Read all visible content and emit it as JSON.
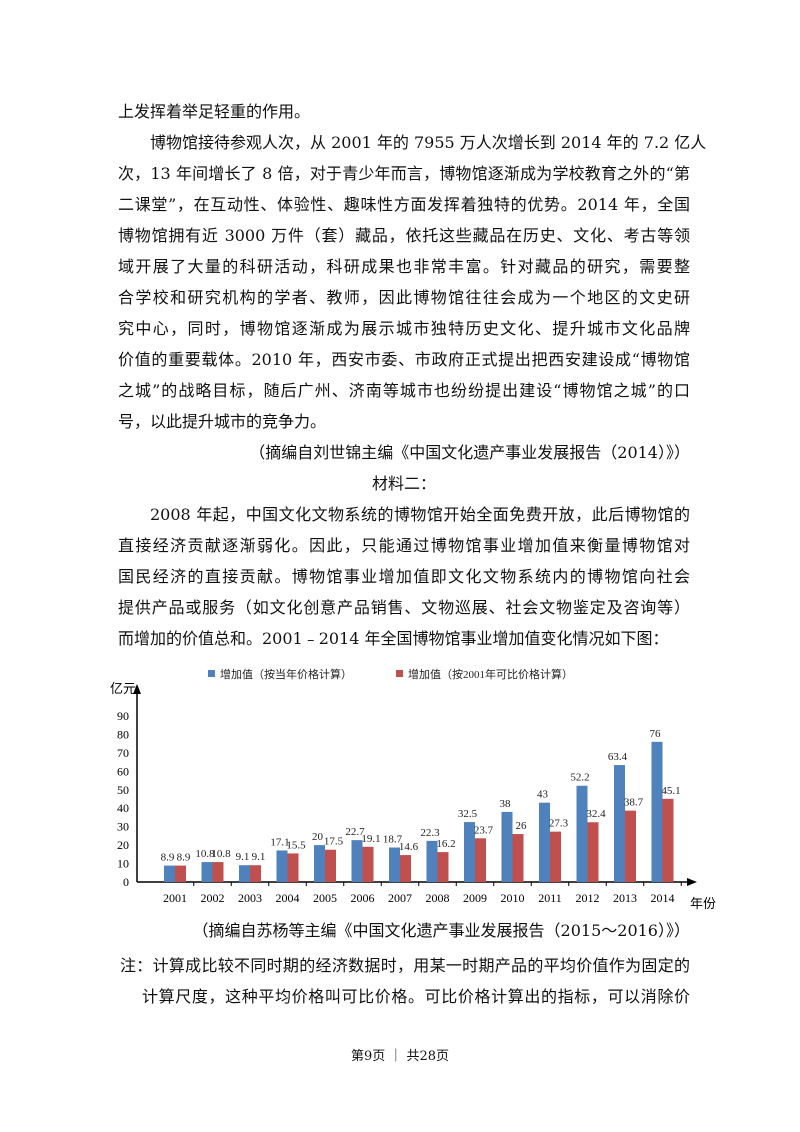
{
  "intro_line": "上发挥着举足轻重的作用。",
  "paragraph1": [
    "博物馆接待参观人次，从 2001 年的 7955 万人次增长到 2014 年的 7.2 亿人",
    "次，13 年间增长了 8 倍，对于青少年而言，博物馆逐渐成为学校教育之外的“第",
    "二课堂”，在互动性、体验性、趣味性方面发挥着独特的优势。2014 年，全国",
    "博物馆拥有近 3000 万件（套）藏品，依托这些藏品在历史、文化、考古等领",
    "域开展了大量的科研活动，科研成果也非常丰富。针对藏品的研究，需要整",
    "合学校和研究机构的学者、教师，因此博物馆往往会成为一个地区的文史研",
    "究中心，同时，博物馆逐渐成为展示城市独特历史文化、提升城市文化品牌",
    "价值的重要载体。2010 年，西安市委、市政府正式提出把西安建设成“博物馆",
    "之城”的战略目标，随后广州、济南等城市也纷纷提出建设“博物馆之城”的口",
    "号，以此提升城市的竞争力。"
  ],
  "citation1": "（摘编自刘世锦主编《中国文化遗产事业发展报告（2014）》）",
  "material2_title": "材料二：",
  "paragraph2": [
    "2008 年起，中国文化文物系统的博物馆开始全面免费开放，此后博物馆的",
    "直接经济贡献逐渐弱化。因此，只能通过博物馆事业增加值来衡量博物馆对",
    "国民经济的直接贡献。博物馆事业增加值即文化文物系统内的博物馆向社会",
    "提供产品或服务（如文化创意产品销售、文物巡展、社会文物鉴定及咨询等）",
    "而增加的价值总和。2001﹣2014 年全国博物馆事业增加值变化情况如下图："
  ],
  "chart_data": {
    "type": "bar",
    "title": "",
    "xlabel": "年份",
    "ylabel": "亿元",
    "ylim": [
      0,
      90
    ],
    "yticks": [
      0,
      10,
      20,
      30,
      40,
      50,
      60,
      70,
      80,
      90
    ],
    "legend_position": "top",
    "categories": [
      "2001",
      "2002",
      "2003",
      "2004",
      "2005",
      "2006",
      "2007",
      "2008",
      "2009",
      "2010",
      "2011",
      "2012",
      "2013",
      "2014"
    ],
    "series": [
      {
        "name": "增加值（按当年价格计算）",
        "color": "#4F81BD",
        "values": [
          8.9,
          10.8,
          9.1,
          17.1,
          20,
          22.7,
          18.7,
          22.3,
          32.5,
          38,
          43,
          52.2,
          63.4,
          76
        ]
      },
      {
        "name": "增加值（按2001年可比价格计算）",
        "color": "#C0504D",
        "values": [
          8.9,
          10.8,
          9.1,
          15.5,
          17.5,
          19.1,
          14.6,
          16.2,
          23.7,
          26,
          27.3,
          32.4,
          38.7,
          45.1
        ]
      }
    ]
  },
  "citation2": "（摘编自苏杨等主编《中国文化遗产事业发展报告（2015～2016）》）",
  "note": [
    "注：计算成比较不同时期的经济数据时，用某一时期产品的平均价值作为固定的",
    "计算尺度，这种平均价格叫可比价格。可比价格计算出的指标，可以消除价"
  ],
  "footer": "第9页 ｜ 共28页"
}
